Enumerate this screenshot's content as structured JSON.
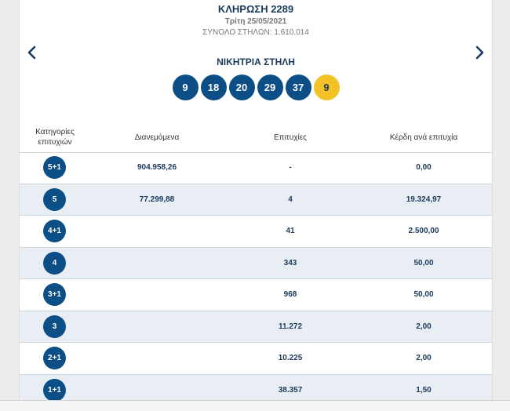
{
  "draw": {
    "title": "ΚΛΗΡΩΣΗ 2289",
    "date": "Τρίτη 25/05/2021",
    "total_columns": "ΣΥΝΟΛΟ ΣΤΗΛΩΝ: 1.610.014"
  },
  "navigation": {
    "prev_icon": "chevron-left-icon",
    "next_icon": "chevron-right-icon"
  },
  "winning": {
    "label": "ΝΙΚΗΤΡΙΑ ΣΤΗΛΗ",
    "numbers": [
      "9",
      "18",
      "20",
      "29",
      "37"
    ],
    "joker": "9"
  },
  "table": {
    "headers": {
      "category_line1": "Κατηγορίες",
      "category_line2": "επιτυχιών",
      "distributed": "Διανεμόμενα",
      "hits": "Επιτυχίες",
      "prize": "Κέρδη ανά επιτυχία"
    },
    "rows": [
      {
        "category": "5+1",
        "distributed": "904.958,26",
        "hits": "-",
        "prize": "0,00"
      },
      {
        "category": "5",
        "distributed": "77.299,88",
        "hits": "4",
        "prize": "19.324,97"
      },
      {
        "category": "4+1",
        "distributed": "",
        "hits": "41",
        "prize": "2.500,00"
      },
      {
        "category": "4",
        "distributed": "",
        "hits": "343",
        "prize": "50,00"
      },
      {
        "category": "3+1",
        "distributed": "",
        "hits": "968",
        "prize": "50,00"
      },
      {
        "category": "3",
        "distributed": "",
        "hits": "11.272",
        "prize": "2,00"
      },
      {
        "category": "2+1",
        "distributed": "",
        "hits": "10.225",
        "prize": "2,00"
      },
      {
        "category": "1+1",
        "distributed": "",
        "hits": "38.357",
        "prize": "1,50"
      }
    ]
  },
  "colors": {
    "primary": "#0b4f86",
    "joker": "#f3c227",
    "row_alt": "#e9eef5"
  }
}
